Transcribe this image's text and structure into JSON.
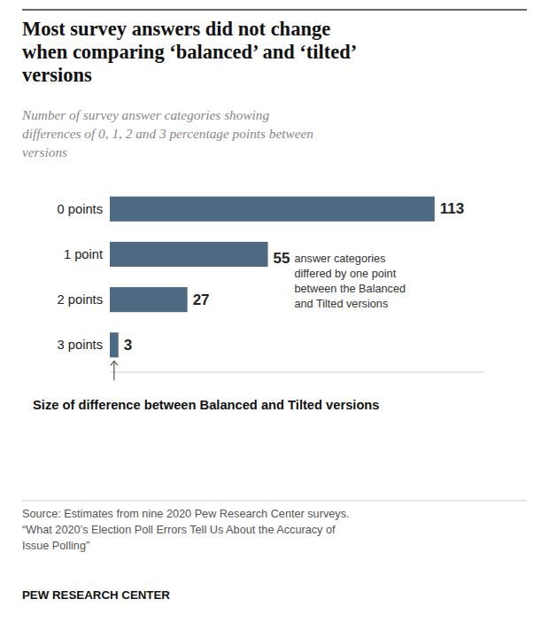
{
  "chart_data": {
    "type": "bar",
    "orientation": "horizontal",
    "title": "Most survey answers did not change\nwhen comparing ‘balanced’ and ‘tilted’\nversions",
    "subtitle": "Number of survey answer categories showing\ndifferences of 0, 1, 2 and 3 percentage points between\nversions",
    "categories": [
      "0 points",
      "1 point",
      "2 points",
      "3 points"
    ],
    "values": [
      113,
      55,
      27,
      3
    ],
    "color": "#4d6a82",
    "xlim": [
      0,
      130
    ],
    "xlabel": "Size of difference between Balanced and Tilted versions",
    "annotation": "answer categories\ndiffered by one point\nbetween the Balanced\nand Tilted versions",
    "source": "Source: Estimates from nine 2020 Pew Research Center surveys.\n“What 2020’s Election Poll Errors Tell Us About the Accuracy of\nIssue Polling”",
    "branding": "PEW RESEARCH CENTER",
    "data_labels": true,
    "tick_labels": "y",
    "grid": false
  }
}
